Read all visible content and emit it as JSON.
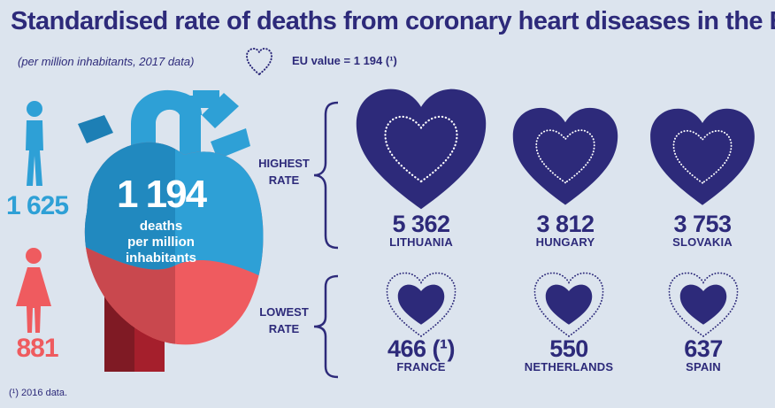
{
  "title": "Standardised rate of deaths from coronary heart diseases in the EU",
  "subtitle": "(per million inhabitants, 2017 data)",
  "eu_value_label": "EU value = 1 194 (¹)",
  "eu": {
    "value": "1 194",
    "caption_line1": "deaths",
    "caption_line2": "per million",
    "caption_line3": "inhabitants"
  },
  "male": {
    "value": "1 625",
    "icon": "male-figure-icon"
  },
  "female": {
    "value": "881",
    "icon": "female-figure-icon"
  },
  "highest": {
    "label_line1": "HIGHEST",
    "label_line2": "RATE",
    "countries": [
      {
        "value": "5 362",
        "name": "LITHUANIA"
      },
      {
        "value": "3 812",
        "name": "HUNGARY"
      },
      {
        "value": "3 753",
        "name": "SLOVAKIA"
      }
    ]
  },
  "lowest": {
    "label_line1": "LOWEST",
    "label_line2": "RATE",
    "countries": [
      {
        "value": "466 (¹)",
        "name": "FRANCE"
      },
      {
        "value": "550",
        "name": "NETHERLANDS"
      },
      {
        "value": "637",
        "name": "SPAIN"
      }
    ]
  },
  "footnote": "(¹) 2016 data.",
  "colors": {
    "background": "#dce4ee",
    "navy": "#2d2a7a",
    "male_blue": "#2ea0d6",
    "female_red": "#ef5b5f",
    "heart_dark_red": "#8e1f2b"
  }
}
